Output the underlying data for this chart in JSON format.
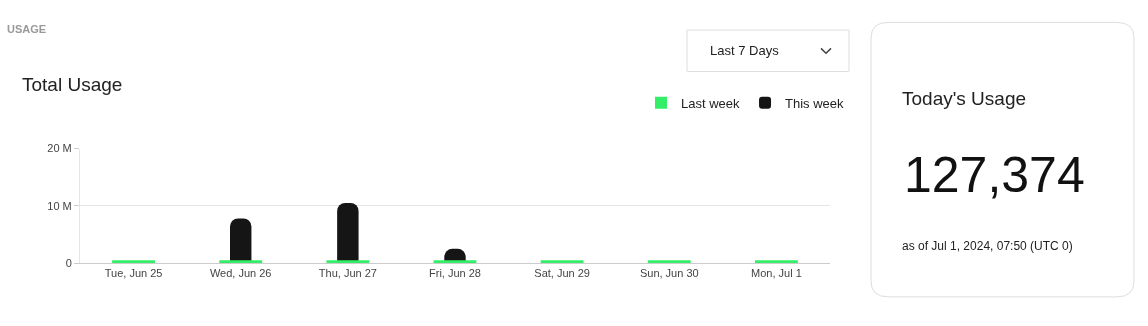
{
  "chart_data": [
    {
      "type": "bar",
      "title": "Total Usage",
      "annotations": [
        "USAGE",
        "Last 7 Days"
      ],
      "categories": [
        "Tue, Jun 25",
        "Wed, Jun 26",
        "Thu, Jun 27",
        "Fri, Jun 28",
        "Sat, Jun 29",
        "Sun, Jun 30",
        "Mon, Jul 1"
      ],
      "series": [
        {
          "name": "Last week",
          "color": "#33ee66",
          "values": [
            0.5,
            0.5,
            0.5,
            0.5,
            0.5,
            0.5,
            0.5
          ]
        },
        {
          "name": "This week",
          "color": "#151515",
          "values": [
            null,
            7.8,
            10.5,
            2.5,
            null,
            null,
            null
          ]
        }
      ],
      "ylim": [
        0,
        20
      ],
      "yticks": [
        0,
        {
          "value": 10,
          "label": "10 M"
        },
        {
          "value": 20,
          "label": "20 M"
        }
      ],
      "grid": "y",
      "legend": "top right"
    },
    {
      "type": "other",
      "title": "Today's Usage",
      "annotations": [
        "127,374",
        "as of Jul 1, 2024, 07:50 (UTC 0)"
      ]
    }
  ]
}
